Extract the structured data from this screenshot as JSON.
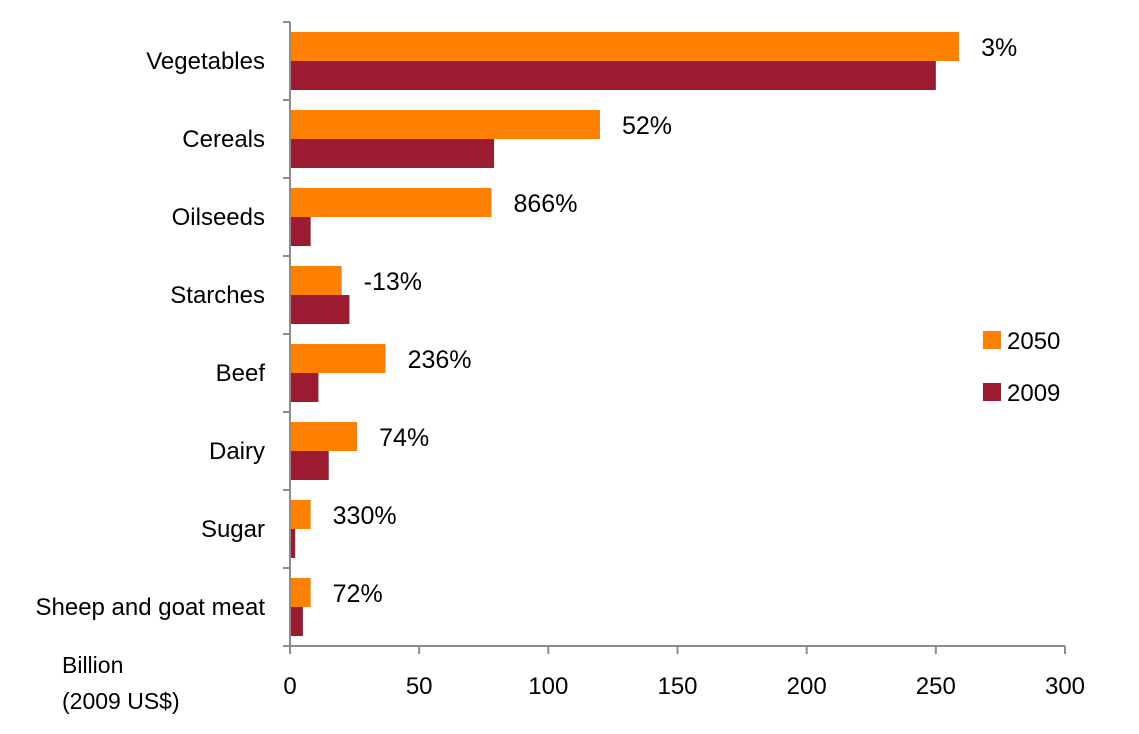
{
  "chart_data": {
    "type": "bar",
    "orientation": "horizontal",
    "categories": [
      "Vegetables",
      "Cereals",
      "Oilseeds",
      "Starches",
      "Beef",
      "Dairy",
      "Sugar",
      "Sheep and goat meat"
    ],
    "series": [
      {
        "name": "2050",
        "color": "#ff7f00",
        "values": [
          259,
          120,
          78,
          20,
          37,
          26,
          8,
          8
        ]
      },
      {
        "name": "2009",
        "color": "#9b1b30",
        "values": [
          250,
          79,
          8,
          23,
          11,
          15,
          2,
          5
        ]
      }
    ],
    "annotations": [
      "3%",
      "52%",
      "866%",
      "-13%",
      "236%",
      "74%",
      "330%",
      "72%"
    ],
    "xlabel": [
      "Billion",
      "(2009 US$)"
    ],
    "xlim": [
      0,
      300
    ],
    "xticks": [
      "0",
      "50",
      "100",
      "150",
      "200",
      "250",
      "300"
    ],
    "grid": false,
    "legend_position": "right"
  }
}
